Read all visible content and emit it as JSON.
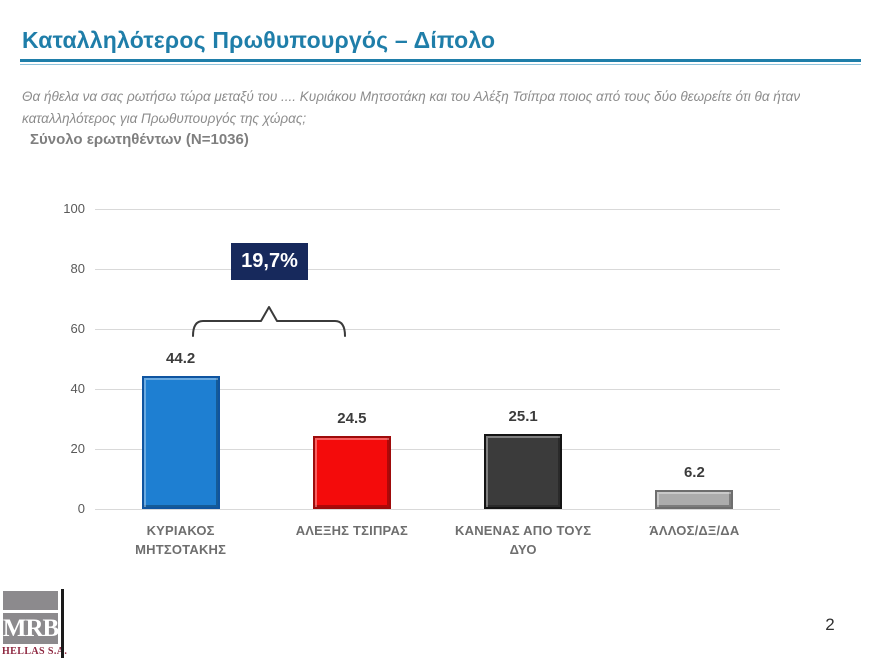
{
  "header": {
    "title": "Καταλληλότερος Πρωθυπουργός – Δίπολο",
    "question": "Θα ήθελα να σας ρωτήσω τώρα μεταξύ του .... Κυριάκου Μητσοτάκη και του Αλέξη Τσίπρα ποιος από τους δύο θεωρείτε ότι θα ήταν καταλληλότερος για Πρωθυπουργός της χώρας;",
    "sample_label": "Σύνολο ερωτηθέντων (N=1036)",
    "accent_color": "#1F7EA9"
  },
  "chart_data": {
    "type": "bar",
    "categories": [
      "ΚΥΡΙΑΚΟΣ ΜΗΤΣΟΤΑΚΗΣ",
      "ΑΛΕΞΗΣ ΤΣΙΠΡΑΣ",
      "ΚΑΝΕΝΑΣ ΑΠΟ ΤΟΥΣ ΔΥΟ",
      "ΆΛΛΟΣ/ΔΞ/ΔΑ"
    ],
    "values": [
      44.2,
      24.5,
      25.1,
      6.2
    ],
    "bar_fill_colors": [
      "#1E7FD2",
      "#F40B0B",
      "#3B3B3B",
      "#ACACAC"
    ],
    "bar_border_colors": [
      "#0E54A0",
      "#9E0B0B",
      "#141414",
      "#6E6E6E"
    ],
    "y_ticks": [
      100,
      80,
      60,
      40,
      20,
      0
    ],
    "ylim": [
      0,
      100
    ],
    "grid": true,
    "legend": false,
    "title": "",
    "xlabel": "",
    "ylabel": "",
    "annotation": {
      "label": "19,7%",
      "box_color": "#17295C",
      "text_color": "#FFFFFF",
      "spans_categories": [
        0,
        1
      ]
    }
  },
  "footer": {
    "logo_text": "MRB",
    "logo_subtext": "HELLAS S.A.",
    "page_number": "2"
  }
}
